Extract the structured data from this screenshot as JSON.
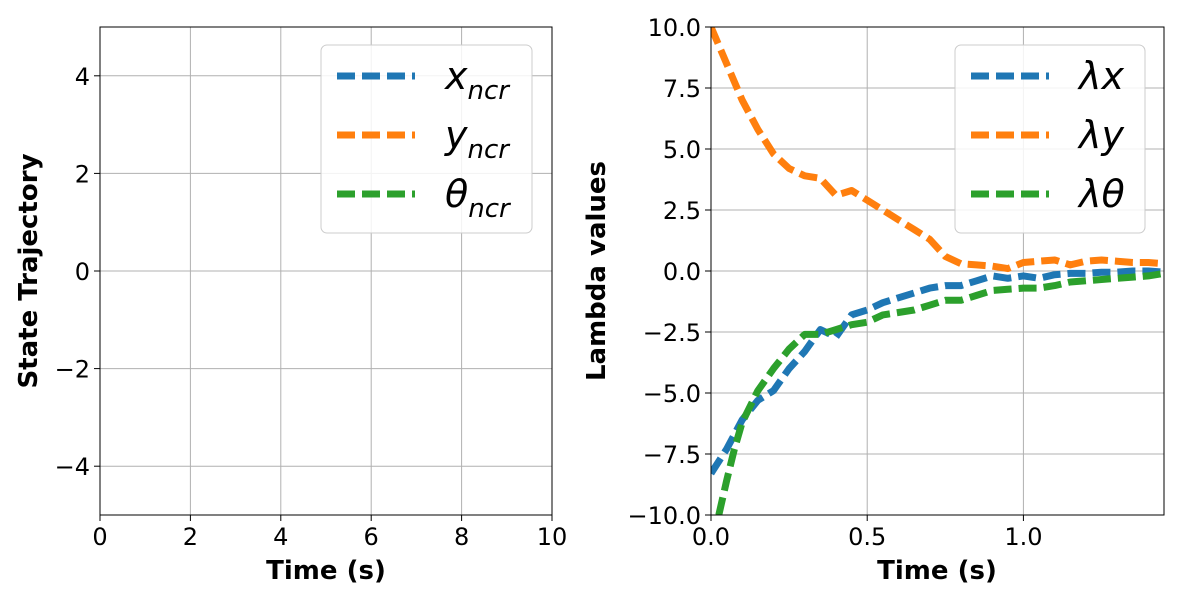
{
  "chart_data": [
    {
      "type": "line",
      "xlabel": "Time (s)",
      "ylabel": "State Trajectory",
      "xlim": [
        0,
        10
      ],
      "ylim": [
        -5,
        5
      ],
      "xticks": [
        0,
        2,
        4,
        6,
        8,
        10
      ],
      "xtick_labels": [
        "0",
        "2",
        "4",
        "6",
        "8",
        "10"
      ],
      "yticks": [
        -4,
        -2,
        0,
        2,
        4
      ],
      "ytick_labels": [
        "−4",
        "−2",
        "0",
        "2",
        "4"
      ],
      "grid": true,
      "legend_position": "top-right",
      "series": [
        {
          "name_base": "x",
          "name_sub": "ncr",
          "color": "#1f77b4",
          "style": "dashed",
          "x": [],
          "y": []
        },
        {
          "name_base": "y",
          "name_sub": "ncr",
          "color": "#ff7f0e",
          "style": "dashed",
          "x": [],
          "y": []
        },
        {
          "name_base": "θ",
          "name_sub": "ncr",
          "color": "#2ca02c",
          "style": "dashed",
          "x": [],
          "y": []
        }
      ]
    },
    {
      "type": "line",
      "xlabel": "Time (s)",
      "ylabel": "Lambda values",
      "xlim": [
        0,
        1.45
      ],
      "ylim": [
        -10,
        10
      ],
      "xticks": [
        0,
        0.5,
        1.0
      ],
      "xtick_labels": [
        "0.0",
        "0.5",
        "1.0"
      ],
      "yticks": [
        -10,
        -7.5,
        -5,
        -2.5,
        0,
        2.5,
        5,
        7.5,
        10
      ],
      "ytick_labels": [
        "−10.0",
        "−7.5",
        "−5.0",
        "−2.5",
        "0.0",
        "2.5",
        "5.0",
        "7.5",
        "10.0"
      ],
      "grid": true,
      "legend_position": "top-right",
      "series": [
        {
          "name_base": "λx",
          "name_sub": "",
          "color": "#1f77b4",
          "style": "dashed",
          "x": [
            0.0,
            0.05,
            0.1,
            0.15,
            0.2,
            0.25,
            0.3,
            0.35,
            0.4,
            0.45,
            0.5,
            0.55,
            0.6,
            0.65,
            0.7,
            0.75,
            0.8,
            0.85,
            0.9,
            0.95,
            1.0,
            1.05,
            1.1,
            1.15,
            1.2,
            1.25,
            1.3,
            1.35,
            1.4,
            1.45
          ],
          "y": [
            -8.3,
            -7.3,
            -6.1,
            -5.3,
            -4.9,
            -4.0,
            -3.3,
            -2.4,
            -2.7,
            -1.8,
            -1.6,
            -1.3,
            -1.1,
            -0.9,
            -0.7,
            -0.6,
            -0.6,
            -0.4,
            -0.2,
            -0.3,
            -0.2,
            -0.3,
            -0.15,
            -0.1,
            -0.1,
            -0.05,
            -0.05,
            0.0,
            0.0,
            -0.05
          ]
        },
        {
          "name_base": "λy",
          "name_sub": "",
          "color": "#ff7f0e",
          "style": "dashed",
          "x": [
            0.0,
            0.05,
            0.1,
            0.15,
            0.2,
            0.25,
            0.3,
            0.35,
            0.4,
            0.45,
            0.5,
            0.55,
            0.6,
            0.65,
            0.7,
            0.75,
            0.8,
            0.85,
            0.9,
            0.95,
            1.0,
            1.05,
            1.1,
            1.15,
            1.2,
            1.25,
            1.3,
            1.35,
            1.4,
            1.45
          ],
          "y": [
            10.0,
            8.5,
            7.0,
            5.8,
            4.8,
            4.2,
            3.9,
            3.8,
            3.1,
            3.3,
            2.9,
            2.5,
            2.1,
            1.7,
            1.3,
            0.6,
            0.3,
            0.25,
            0.2,
            0.1,
            0.35,
            0.4,
            0.45,
            0.25,
            0.4,
            0.45,
            0.4,
            0.35,
            0.35,
            0.3
          ]
        },
        {
          "name_base": "λθ",
          "name_sub": "",
          "color": "#2ca02c",
          "style": "dashed",
          "x": [
            0.025,
            0.05,
            0.075,
            0.1,
            0.15,
            0.2,
            0.25,
            0.3,
            0.35,
            0.4,
            0.45,
            0.5,
            0.55,
            0.6,
            0.65,
            0.7,
            0.75,
            0.8,
            0.85,
            0.9,
            0.95,
            1.0,
            1.05,
            1.1,
            1.15,
            1.2,
            1.25,
            1.3,
            1.35,
            1.4,
            1.45
          ],
          "y": [
            -10.0,
            -8.6,
            -7.3,
            -6.2,
            -4.9,
            -4.0,
            -3.2,
            -2.6,
            -2.6,
            -2.4,
            -2.2,
            -2.1,
            -1.8,
            -1.7,
            -1.6,
            -1.4,
            -1.2,
            -1.2,
            -1.0,
            -0.8,
            -0.75,
            -0.7,
            -0.7,
            -0.6,
            -0.45,
            -0.4,
            -0.35,
            -0.3,
            -0.25,
            -0.2,
            -0.1
          ]
        }
      ]
    }
  ]
}
